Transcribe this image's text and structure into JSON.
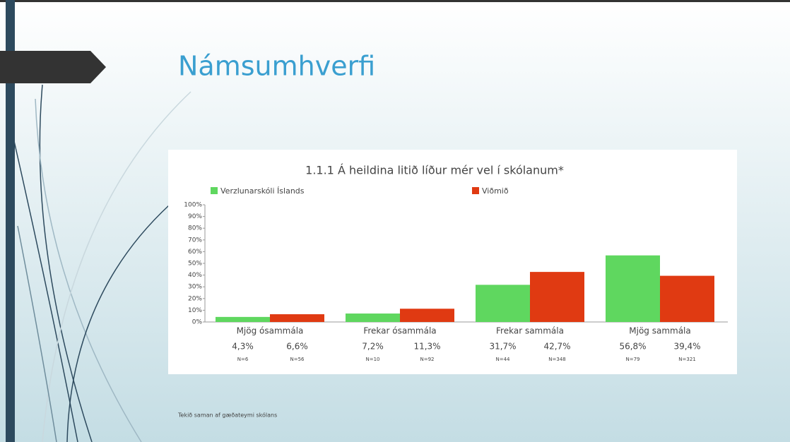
{
  "slide_title": "Námsumhverfi",
  "footnote": "Tekið saman af gæðateymi skólans",
  "chart_data": {
    "type": "bar",
    "title": "1.1.1 Á heildina litið líður mér vel í skólanum*",
    "categories": [
      "Mjög ósammála",
      "Frekar ósammála",
      "Frekar sammála",
      "Mjög sammála"
    ],
    "series": [
      {
        "name": "Verzlunarskóli Íslands",
        "color": "#5fd75f",
        "values": [
          4.3,
          7.2,
          31.7,
          56.8
        ],
        "value_labels": [
          "4,3%",
          "7,2%",
          "31,7%",
          "56,8%"
        ],
        "n_labels": [
          "N=6",
          "N=10",
          "N=44",
          "N=79"
        ]
      },
      {
        "name": "Viðmið",
        "color": "#e03a12",
        "values": [
          6.6,
          11.3,
          42.7,
          39.4
        ],
        "value_labels": [
          "6,6%",
          "11,3%",
          "42,7%",
          "39,4%"
        ],
        "n_labels": [
          "N=56",
          "N=92",
          "N=348",
          "N=321"
        ]
      }
    ],
    "ylim": [
      0,
      100
    ],
    "yticks": [
      {
        "value": 0,
        "label": "0%"
      },
      {
        "value": 10,
        "label": "10%"
      },
      {
        "value": 20,
        "label": "20%"
      },
      {
        "value": 30,
        "label": "30%"
      },
      {
        "value": 40,
        "label": "40%"
      },
      {
        "value": 50,
        "label": "50%"
      },
      {
        "value": 60,
        "label": "60%"
      },
      {
        "value": 70,
        "label": "70%"
      },
      {
        "value": 80,
        "label": "80%"
      },
      {
        "value": 90,
        "label": "90%"
      },
      {
        "value": 100,
        "label": "100%"
      }
    ],
    "legend": "top"
  }
}
